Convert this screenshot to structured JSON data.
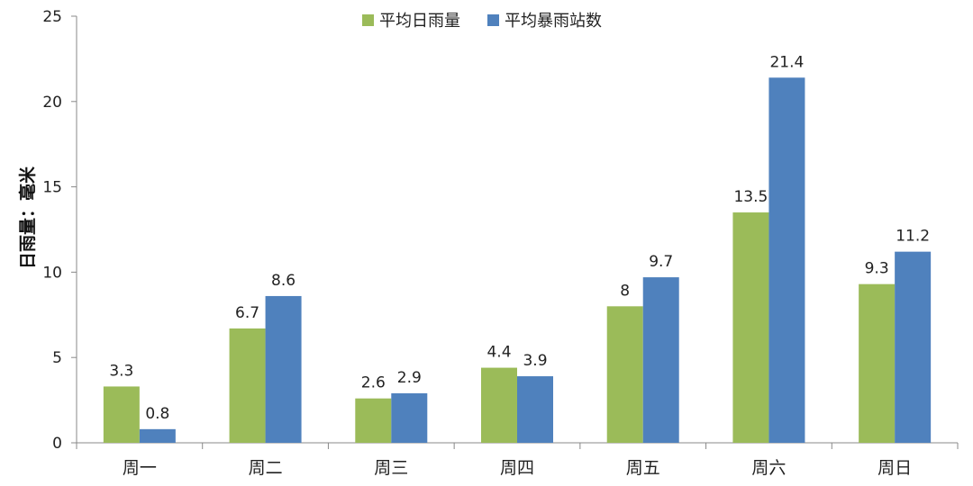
{
  "chart_data": {
    "type": "bar",
    "categories": [
      "周一",
      "周二",
      "周三",
      "周四",
      "周五",
      "周六",
      "周日"
    ],
    "series": [
      {
        "name": "平均日雨量",
        "values": [
          3.3,
          6.7,
          2.6,
          4.4,
          8,
          13.5,
          9.3
        ],
        "labels": [
          "3.3",
          "6.7",
          "2.6",
          "4.4",
          "8",
          "13.5",
          "9.3"
        ],
        "color": "#9bbb59"
      },
      {
        "name": "平均暴雨站数",
        "values": [
          0.8,
          8.6,
          2.9,
          3.9,
          9.7,
          21.4,
          11.2
        ],
        "labels": [
          "0.8",
          "8.6",
          "2.9",
          "3.9",
          "9.7",
          "21.4",
          "11.2"
        ],
        "color": "#4f81bd"
      }
    ],
    "ylabel": "日雨量：毫米",
    "ylim": [
      0,
      25
    ],
    "yticks": [
      "0",
      "5",
      "10",
      "15",
      "20",
      "25"
    ],
    "legend_position": "top",
    "grid": false
  }
}
